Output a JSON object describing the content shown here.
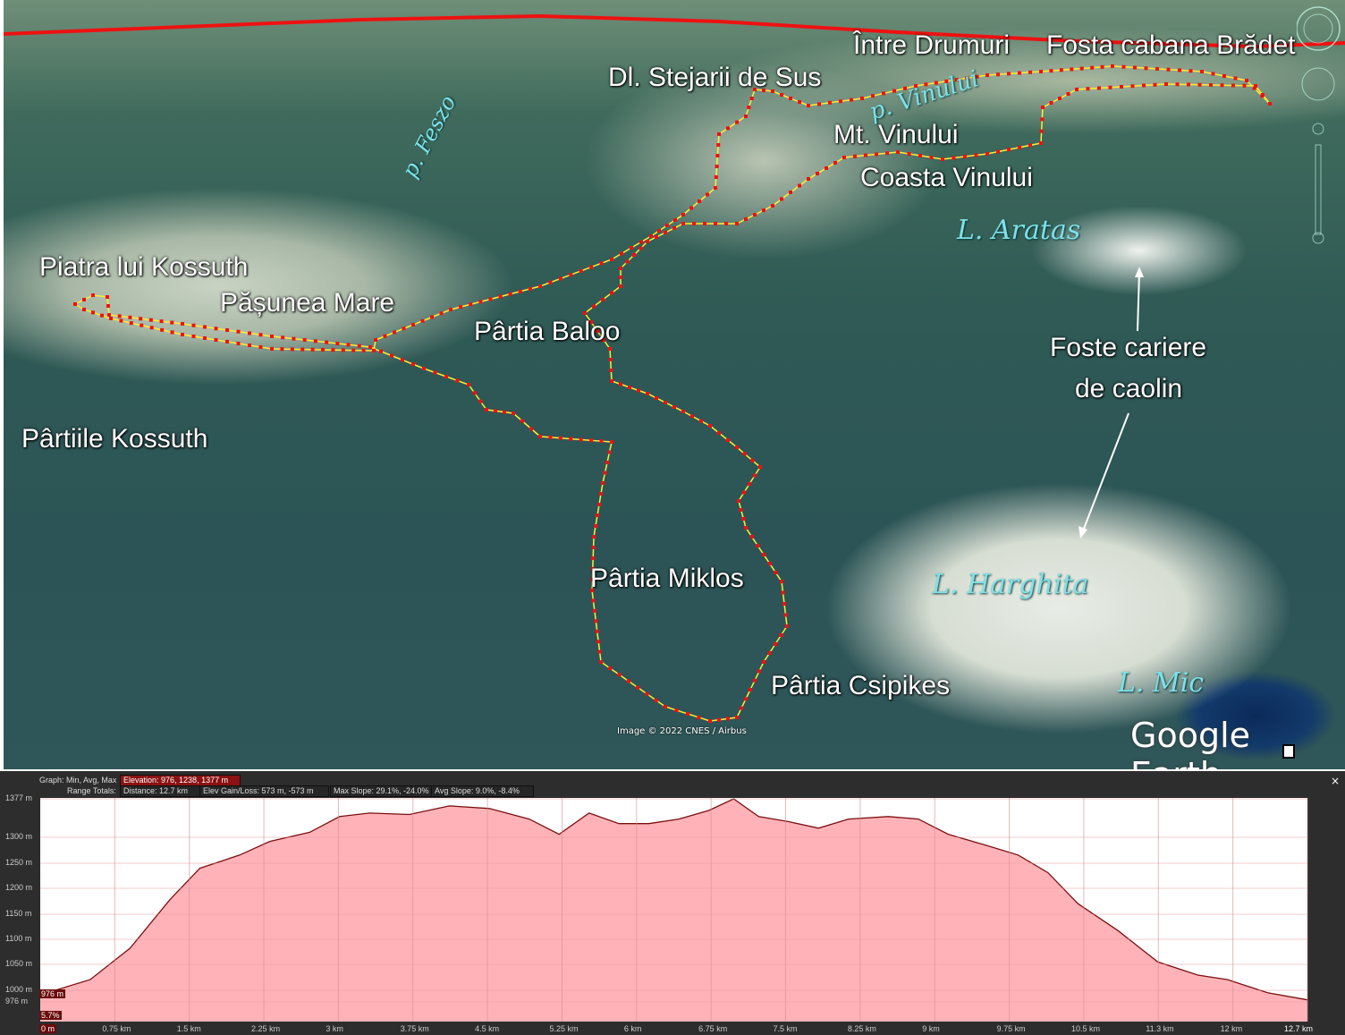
{
  "map": {
    "labels": [
      "Între Drumuri",
      "Fosta cabana Brădet",
      "Dl. Stejarii de Sus",
      "Mt. Vinului",
      "Coasta Vinului",
      "Piatra lui Kossuth",
      "Pășunea Mare",
      "Pârtia Baloo",
      "Pârtiile Kossuth",
      "Foste cariere",
      "de caolin",
      "Pârtia Miklos",
      "Pârtia Csipikes"
    ],
    "water_labels": [
      "p. Feszo",
      "p. Vinului",
      "L. Aratas",
      "L. Harghita",
      "L. Mic"
    ],
    "credit": "Image © 2022 CNES / Airbus",
    "logo": "Google Earth",
    "route_colors": {
      "track": "#ffee33",
      "points": "#ee1111",
      "road": "#ee1111"
    },
    "controls": [
      "compass-icon",
      "look-joystick-icon",
      "zoom-slider"
    ]
  },
  "profile": {
    "graph_label": "Graph: Min, Avg, Max",
    "elevation": "Elevation: 976, 1238, 1377 m",
    "range_label": "Range Totals:",
    "distance": "Distance: 12.7 km",
    "gain_loss": "Elev Gain/Loss: 573 m, -573 m",
    "max_slope": "Max Slope: 29.1%, -24.0%",
    "avg_slope": "Avg Slope: 9.0%, -8.4%",
    "cursor_elev": "976 m",
    "cursor_slope": "5.7%",
    "cursor_dist": "0 m",
    "close": "×"
  },
  "chart_data": {
    "type": "area",
    "xlabel": "",
    "ylabel": "",
    "x_unit": "km",
    "y_unit": "m",
    "xlim": [
      0,
      12.7
    ],
    "ylim": [
      976,
      1377
    ],
    "fill_color": "#ffb3b8",
    "line_color": "#7a1010",
    "grid": true,
    "y_ticks": [
      "1377 m",
      "1300 m",
      "1250 m",
      "1200 m",
      "1150 m",
      "1100 m",
      "1050 m",
      "1000 m",
      "976 m"
    ],
    "x_ticks": [
      "0.75 km",
      "1.5 km",
      "2.25 km",
      "3 km",
      "3.75 km",
      "4.5 km",
      "5.25 km",
      "6 km",
      "6.75 km",
      "7.5 km",
      "8.25 km",
      "9 km",
      "9.75 km",
      "10.5 km",
      "11.3 km",
      "12 km",
      "12.7 km"
    ],
    "x": [
      0,
      0.5,
      0.9,
      1.3,
      1.6,
      2.0,
      2.3,
      2.7,
      3.0,
      3.3,
      3.7,
      4.1,
      4.5,
      4.9,
      5.2,
      5.5,
      5.8,
      6.1,
      6.4,
      6.7,
      6.95,
      7.2,
      7.5,
      7.8,
      8.1,
      8.5,
      8.8,
      9.1,
      9.5,
      9.8,
      10.1,
      10.4,
      10.8,
      11.2,
      11.6,
      11.9,
      12.3,
      12.7
    ],
    "y": [
      990,
      1020,
      1082,
      1178,
      1240,
      1266,
      1293,
      1311,
      1342,
      1349,
      1346,
      1363,
      1358,
      1337,
      1307,
      1349,
      1328,
      1328,
      1337,
      1354,
      1377,
      1342,
      1332,
      1319,
      1337,
      1342,
      1337,
      1307,
      1284,
      1266,
      1231,
      1170,
      1117,
      1055,
      1029,
      1020,
      994,
      980
    ]
  }
}
